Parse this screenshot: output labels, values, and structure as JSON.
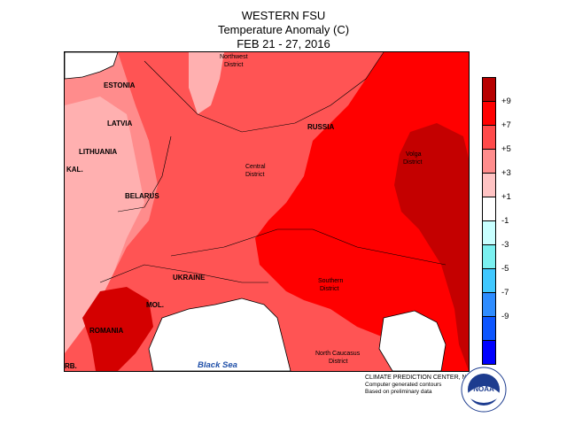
{
  "title": {
    "line1": "WESTERN FSU",
    "line2": "Temperature Anomaly (C)",
    "line3": "FEB 21 - 27, 2016"
  },
  "labels": {
    "estonia": "ESTONIA",
    "latvia": "LATVIA",
    "lithuania": "LITHUANIA",
    "kal": "KAL.",
    "belarus": "BELARUS",
    "ukraine": "UKRAINE",
    "mol": "MOL.",
    "romania": "ROMANIA",
    "rb": "RB.",
    "russia": "RUSSIA",
    "northwest": "Northwest",
    "northwest2": "District",
    "central": "Central",
    "central2": "District",
    "volga": "Volga",
    "volga2": "District",
    "southern": "Southern",
    "southern2": "District",
    "ncaucasus": "North Caucasus",
    "ncaucasus2": "District",
    "black_sea": "Black Sea"
  },
  "legend": {
    "colors": [
      "#b70000",
      "#ff0000",
      "#ff4a4a",
      "#ff8c8c",
      "#ffc3c3",
      "#ffffff",
      "#c8ffff",
      "#7af0f0",
      "#40c8ff",
      "#2e8cff",
      "#0c55ff",
      "#0000ff"
    ],
    "ticks": [
      "+9",
      "+7",
      "+5",
      "+3",
      "+1",
      "-1",
      "-3",
      "-5",
      "-7",
      "-9"
    ]
  },
  "credit": {
    "line1": "CLIMATE PREDICTION CENTER, NOAA",
    "line2": "Computer generated contours",
    "line3": "Based on preliminary data"
  },
  "logo_text": "NOAA"
}
